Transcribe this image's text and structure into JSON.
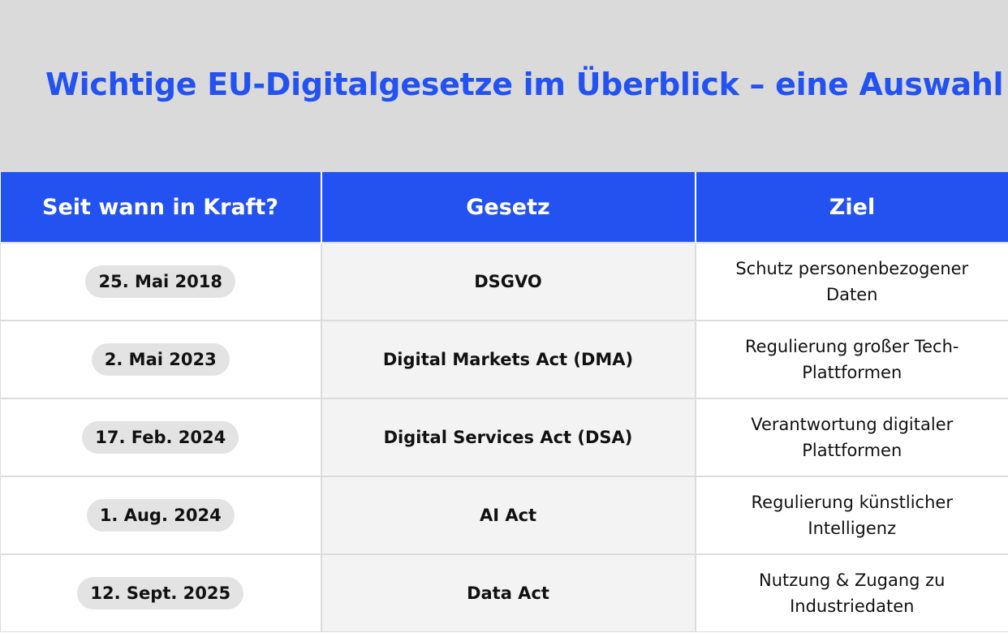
{
  "title": "Wichtige EU-Digitalgesetze im Überblick – eine Auswahl",
  "columns": [
    "Seit wann in Kraft?",
    "Gesetz",
    "Ziel"
  ],
  "rows": [
    {
      "date": "25. Mai 2018",
      "law": "DSGVO",
      "goal": "Schutz personenbezogener Daten"
    },
    {
      "date": "2. Mai 2023",
      "law": "Digital Markets Act (DMA)",
      "goal": "Regulierung großer Tech-Plattformen"
    },
    {
      "date": "17. Feb. 2024",
      "law": "Digital Services Act (DSA)",
      "goal": "Verantwortung digitaler Plattformen"
    },
    {
      "date": "1. Aug. 2024",
      "law": "AI Act",
      "goal": "Regulierung künstlicher Intelligenz"
    },
    {
      "date": "12. Sept. 2025",
      "law": "Data Act",
      "goal": "Nutzung & Zugang zu Industriedaten"
    }
  ],
  "colors": {
    "accent": "#2352f0",
    "title_background": "#dadada",
    "law_column_background": "#f3f3f3",
    "date_pill": "#e3e3e3"
  }
}
